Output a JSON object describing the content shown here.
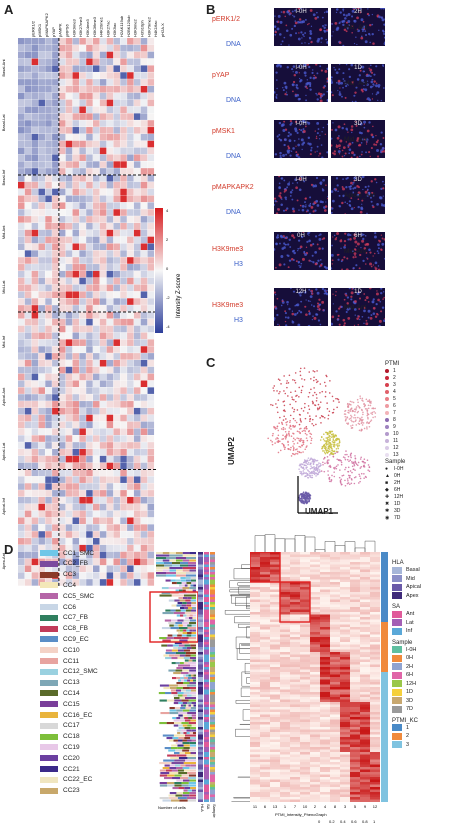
{
  "panels": {
    "a": "A",
    "b": "B",
    "c": "C",
    "d": "D"
  },
  "panel_a": {
    "columns": [
      "pERK1/2",
      "pMSK1",
      "pMAPKAPK2",
      "pYAP",
      "pAMPK",
      "pRPS6",
      "H3K9me3",
      "H3K27me3",
      "H3K4me3",
      "H3K36me3",
      "H4K20me1",
      "H3K27ac",
      "H3K9ac",
      "H2AK119ub",
      "H2BK120ub",
      "H3K9me2",
      "H3S10ph",
      "H3K79me2",
      "H4K16ac",
      "pH2A.X"
    ],
    "groups": [
      "Basal-Ant",
      "Basal-Lat",
      "Basal-Inf",
      "Mid-Ant",
      "Mid-Lat",
      "Mid-Inf",
      "Apical-Ant",
      "Apical-Lat",
      "Apical-Inf",
      "Apex-Ant"
    ],
    "colorbar": {
      "title": "Intensity Z-score",
      "ticks": [
        "4",
        "2",
        "0",
        "-2",
        "-4"
      ]
    }
  },
  "panel_b": {
    "rows": [
      {
        "t1": "I-0H",
        "t2": "2H",
        "label1": "pERK1/2",
        "label2": "DNA",
        "region": "Mid_Ant"
      },
      {
        "t1": "I-0H",
        "t2": "1D",
        "label1": "pYAP",
        "label2": "DNA",
        "region": "Mid_Ant"
      },
      {
        "t1": "I-0H",
        "t2": "3D",
        "label1": "pMSK1",
        "label2": "DNA",
        "region": "Mid_Ant"
      },
      {
        "t1": "I-0H",
        "t2": "3D",
        "label1": "pMAPKAPK2",
        "label2": "DNA",
        "region": "Apical_Ant"
      },
      {
        "t1": "0H",
        "t2": "6H",
        "label1": "H3K9me3",
        "label2": "H3",
        "region": "Mid-Ant"
      },
      {
        "t1": "12H",
        "t2": "1D",
        "label1": "H3K9me3",
        "label2": "H3",
        "region": "Mid-Ant"
      }
    ]
  },
  "panel_c": {
    "xlabel": "UMAP1",
    "ylabel": "UMAP2",
    "ptmi_title": "PTMI",
    "ptmi": [
      "1",
      "2",
      "3",
      "4",
      "5",
      "6",
      "7",
      "8",
      "9",
      "10",
      "11",
      "12",
      "13"
    ],
    "ptmi_colors": [
      "#b2182b",
      "#c8283a",
      "#d6404e",
      "#e0606a",
      "#e87e86",
      "#ee9aa1",
      "#f3b3b8",
      "#8c6bb1",
      "#9e82bf",
      "#b39acc",
      "#c7b3d9",
      "#d9cbe6",
      "#e8dff0"
    ],
    "sample_title": "Sample",
    "samples": [
      "I-0H",
      "0H",
      "2H",
      "6H",
      "12H",
      "1D",
      "3D",
      "7D"
    ]
  },
  "panel_d": {
    "cc": [
      "CC1_SMC",
      "CC2_FB",
      "CC3",
      "CC4",
      "CC5_SMC",
      "CC6",
      "CC7_FB",
      "CC8_FB",
      "CC9_EC",
      "CC10",
      "CC11",
      "CC12_SMC",
      "CC13",
      "CC14",
      "CC15",
      "CC16_EC",
      "CC17",
      "CC18",
      "CC19",
      "CC20",
      "CC21",
      "CC22_EC",
      "CC23"
    ],
    "cc_colors": [
      "#6fc7e8",
      "#7b4a9e",
      "#8b3a2a",
      "#f3e7b8",
      "#b565a7",
      "#c8d6e6",
      "#2f7f5f",
      "#c23b5a",
      "#5b8ec7",
      "#f4d2c6",
      "#e8a4a0",
      "#9ad1e0",
      "#7ea7b6",
      "#5a6b2a",
      "#7a3e9a",
      "#e9b43c",
      "#d8d8d8",
      "#7dbf3a",
      "#e8c8e8",
      "#6b3fa0",
      "#3b2a8a",
      "#f0e6c0",
      "#c8a86b"
    ],
    "bottom_labels": {
      "number_cells": "Number of cells",
      "hla": "HLA",
      "sa": "SA",
      "sample": "Sample",
      "ptmi_kc": "PTMI_KC",
      "phenograph": "PTMI_Intensity_PhenoGraph"
    },
    "col_clusters": [
      "11",
      "6",
      "13",
      "1",
      "7",
      "10",
      "2",
      "4",
      "8",
      "3",
      "5",
      "9",
      "12"
    ],
    "scale_ticks": [
      "0",
      "0.2",
      "0.4",
      "0.6",
      "0.8",
      "1"
    ],
    "legend": {
      "hla_title": "HLA",
      "hla": [
        "Basal",
        "Mid",
        "Apical",
        "Apex"
      ],
      "hla_colors": [
        "#a6b6d8",
        "#8b8fc7",
        "#6a5aa8",
        "#3f2a7a"
      ],
      "sa_title": "SA",
      "sa": [
        "Ant",
        "Lat",
        "Inf"
      ],
      "sa_colors": [
        "#e05a9a",
        "#a35fb5",
        "#5aa8d8"
      ],
      "sample_title": "Sample",
      "sample": [
        "I-0H",
        "0H",
        "2H",
        "6H",
        "12H",
        "1D",
        "3D",
        "7D"
      ],
      "sample_colors": [
        "#5fbfa0",
        "#f08a3c",
        "#8fa3d0",
        "#e065a8",
        "#9ac74a",
        "#f5d03c",
        "#c8a870",
        "#9a9a9a"
      ],
      "kc_title": "PTMI_KC",
      "kc": [
        "1",
        "2",
        "3"
      ],
      "kc_colors": [
        "#4a8ac7",
        "#f08a3c",
        "#7fc3e0"
      ]
    }
  }
}
